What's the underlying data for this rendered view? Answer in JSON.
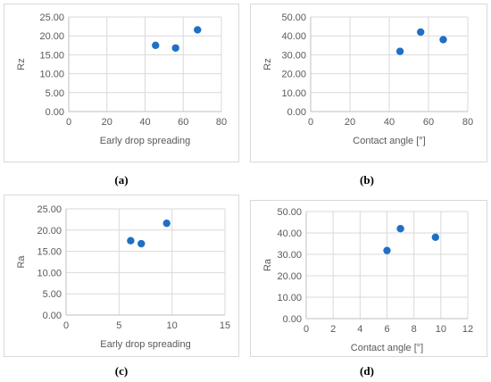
{
  "colors": {
    "marker": "#1f6fc5",
    "grid": "#d9d9d9",
    "axis": "#bfbfbf",
    "text": "#595959"
  },
  "captions": [
    "(a)",
    "(b)",
    "(c)",
    "(d)"
  ],
  "chart_data": [
    {
      "type": "scatter",
      "xlabel": "Early drop spreading",
      "ylabel": "Rz",
      "xlim": [
        0,
        80
      ],
      "xticks": [
        "0",
        "20",
        "40",
        "60",
        "80"
      ],
      "ylim": [
        0,
        25
      ],
      "yticks": [
        "0.00",
        "5.00",
        "10.00",
        "15.00",
        "20.00",
        "25.00"
      ],
      "x": [
        45.5,
        56,
        67.5
      ],
      "y": [
        17.5,
        16.8,
        21.6
      ],
      "grid": true
    },
    {
      "type": "scatter",
      "xlabel": "Contact angle [°]",
      "ylabel": "Rz",
      "xlim": [
        0,
        80
      ],
      "xticks": [
        "0",
        "20",
        "40",
        "60",
        "80"
      ],
      "ylim": [
        0,
        50
      ],
      "yticks": [
        "0.00",
        "10.00",
        "20.00",
        "30.00",
        "40.00",
        "50.00"
      ],
      "x": [
        45.5,
        56,
        67.5
      ],
      "y": [
        31.8,
        42,
        38
      ],
      "grid": true
    },
    {
      "type": "scatter",
      "xlabel": "Early drop spreading",
      "ylabel": "Ra",
      "xlim": [
        0,
        15
      ],
      "xticks": [
        "0",
        "5",
        "10",
        "15"
      ],
      "ylim": [
        0,
        25
      ],
      "yticks": [
        "0.00",
        "5.00",
        "10.00",
        "15.00",
        "20.00",
        "25.00"
      ],
      "x": [
        6.1,
        7.1,
        9.5
      ],
      "y": [
        17.5,
        16.8,
        21.6
      ],
      "grid": true
    },
    {
      "type": "scatter",
      "xlabel": "Contact angle [°]",
      "ylabel": "Ra",
      "xlim": [
        0,
        12
      ],
      "xticks": [
        "0",
        "2",
        "4",
        "6",
        "8",
        "10",
        "12"
      ],
      "ylim": [
        0,
        50
      ],
      "yticks": [
        "0.00",
        "10.00",
        "20.00",
        "30.00",
        "40.00",
        "50.00"
      ],
      "x": [
        6,
        7,
        9.6
      ],
      "y": [
        31.8,
        42,
        38
      ],
      "grid": true
    }
  ]
}
